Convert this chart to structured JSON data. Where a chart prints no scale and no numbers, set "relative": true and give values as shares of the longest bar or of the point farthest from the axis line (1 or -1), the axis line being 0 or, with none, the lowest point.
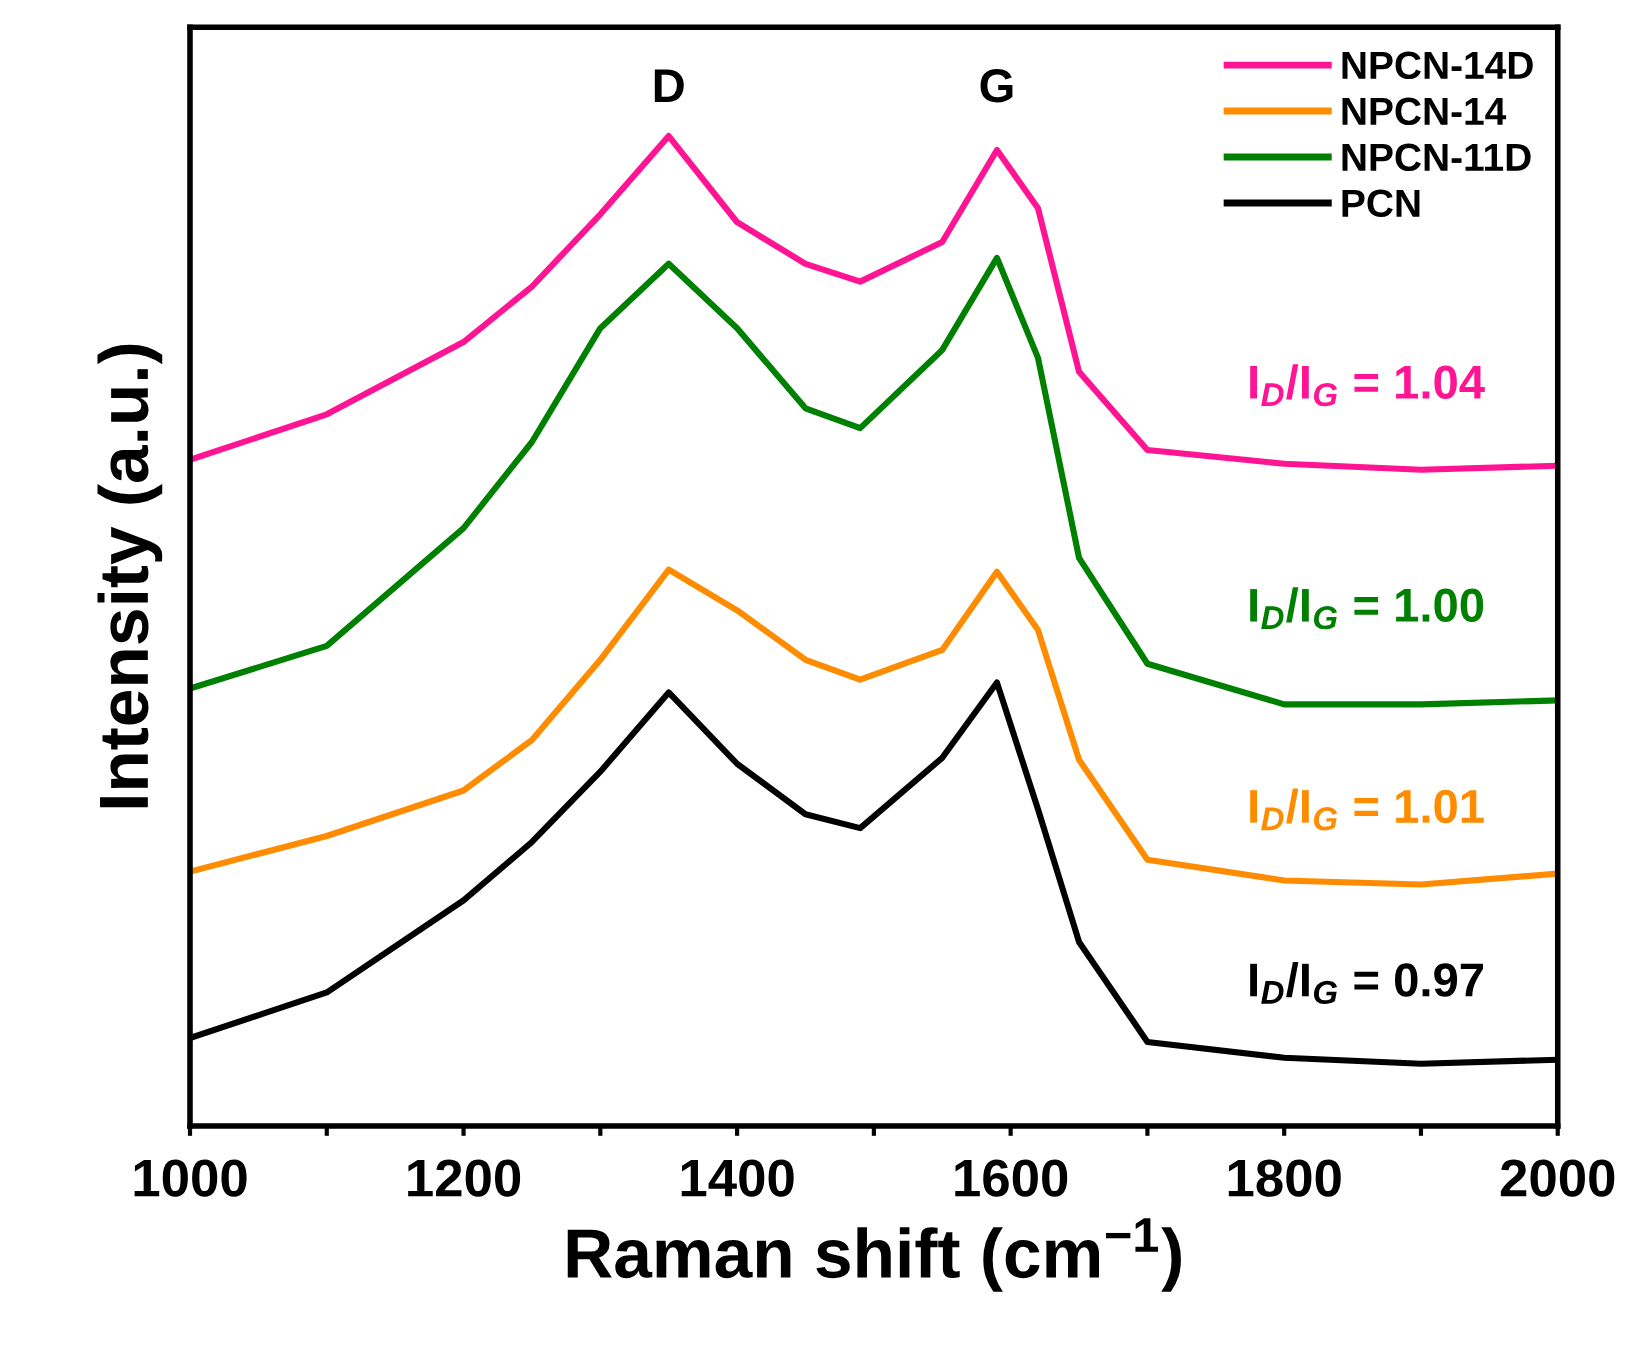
{
  "chart_data": {
    "type": "line",
    "relative": true,
    "xlabel": "Raman shift (cm$^{−1}$)",
    "ylabel": "Intensity (a.u.)",
    "x": [
      1000,
      1100,
      1200,
      1250,
      1300,
      1350,
      1400,
      1450,
      1490,
      1550,
      1590,
      1620,
      1650,
      1700,
      1800,
      1900,
      2000
    ],
    "series": [
      {
        "name": "NPCN-14D",
        "color": "#ff1493",
        "values": [
          0.673,
          0.719,
          0.792,
          0.848,
          0.921,
          1.0,
          0.913,
          0.871,
          0.853,
          0.893,
          0.986,
          0.927,
          0.762,
          0.683,
          0.669,
          0.663,
          0.667
        ]
      },
      {
        "name": "NPCN-14",
        "color": "#ff8c00",
        "values": [
          0.257,
          0.293,
          0.339,
          0.39,
          0.471,
          0.562,
          0.521,
          0.471,
          0.451,
          0.481,
          0.56,
          0.501,
          0.37,
          0.269,
          0.248,
          0.244,
          0.255
        ]
      },
      {
        "name": "NPCN-11D",
        "color": "#008000",
        "values": [
          0.442,
          0.485,
          0.604,
          0.691,
          0.806,
          0.871,
          0.806,
          0.725,
          0.705,
          0.784,
          0.877,
          0.776,
          0.574,
          0.467,
          0.426,
          0.426,
          0.43
        ]
      },
      {
        "name": "PCN",
        "color": "#000000",
        "values": [
          0.089,
          0.135,
          0.228,
          0.287,
          0.358,
          0.438,
          0.366,
          0.315,
          0.301,
          0.372,
          0.448,
          0.32,
          0.186,
          0.085,
          0.069,
          0.063,
          0.067
        ]
      }
    ],
    "xlim": [
      1000,
      2000
    ],
    "xticks": [
      1000,
      {
        "value": 1100,
        "label": null
      },
      1200,
      {
        "value": 1300,
        "label": null
      },
      1400,
      {
        "value": 1500,
        "label": null
      },
      1600,
      {
        "value": 1700,
        "label": null
      },
      1800,
      {
        "value": 1900,
        "label": null
      },
      2000
    ],
    "tick_labels": "x",
    "grid": false,
    "legend": "top right",
    "line_style": "solid",
    "marker": "none",
    "annotations": [
      "D",
      "G",
      "I$_{D}$/I$_{G}$ = 1.04",
      "I$_{D}$/I$_{G}$ = 1.00",
      "I$_{D}$/I$_{G}$ = 1.01",
      "I$_{D}$/I$_{G}$ = 0.97"
    ]
  }
}
